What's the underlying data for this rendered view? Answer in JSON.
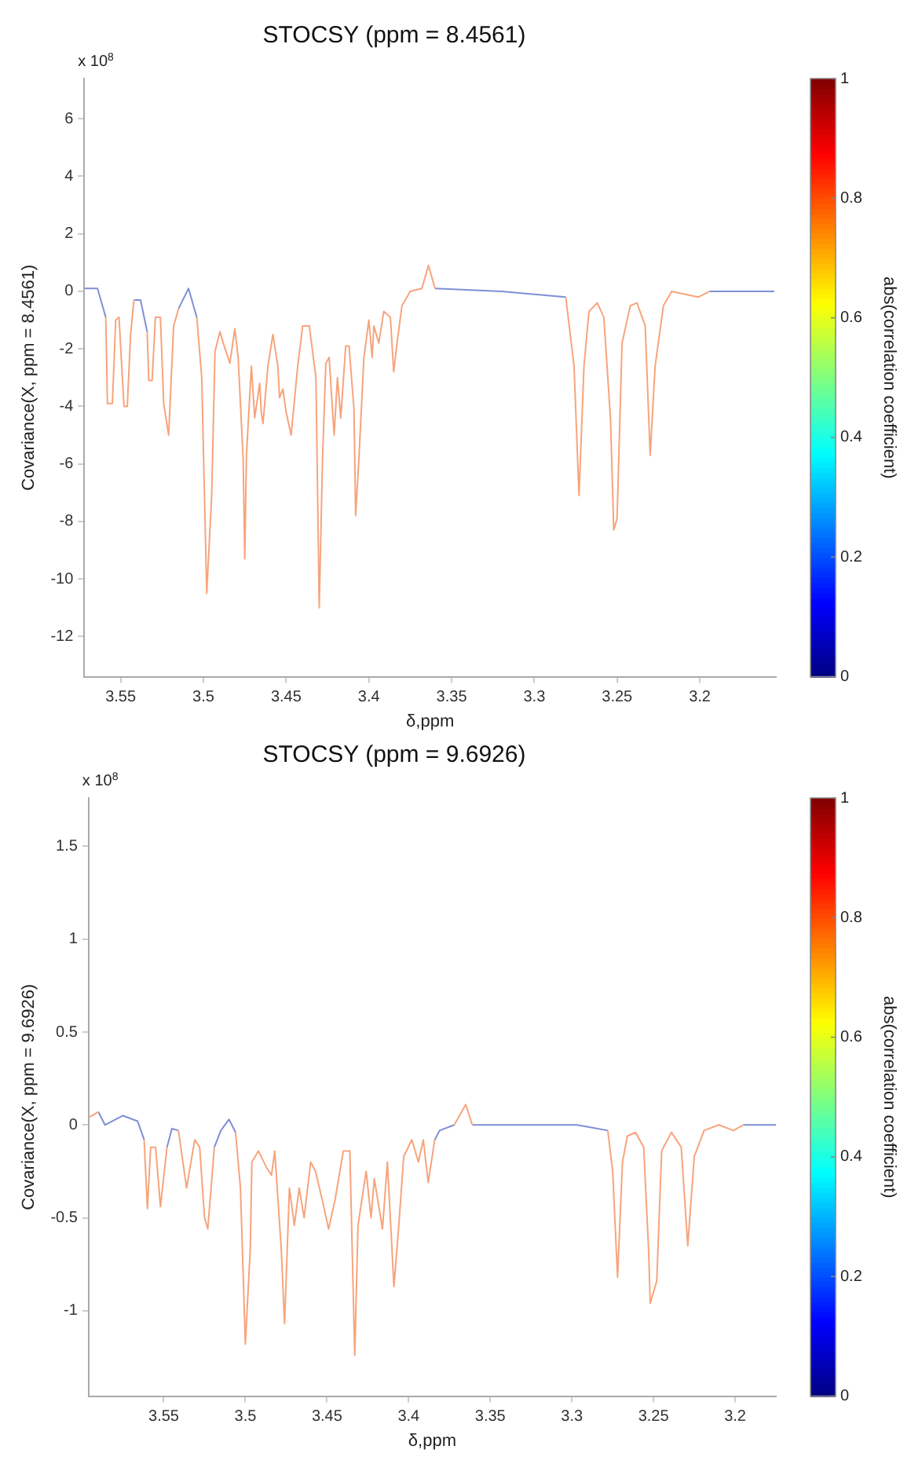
{
  "chart_data": [
    {
      "type": "line",
      "title": "STOCSY (ppm = 8.4561)",
      "xlabel": "δ,ppm",
      "ylabel": "Covariance(X, ppm = 8.4561)",
      "clabel": "abs(correlation coefficient)",
      "annotations": [
        "x 10$^{8}$"
      ],
      "xlim": [
        3.572,
        3.154
      ],
      "xticks": [
        3.55,
        3.5,
        3.45,
        3.4,
        3.35,
        3.3,
        3.25,
        3.2
      ],
      "ylim": [
        -13.4,
        7.4
      ],
      "yticks": [
        -12,
        -10,
        -8,
        -6,
        -4,
        -2,
        0,
        2,
        4,
        6
      ],
      "clim": [
        0,
        1
      ],
      "cticks": [
        0,
        0.2,
        0.4,
        0.6,
        0.8,
        1
      ],
      "grid": false,
      "legend": false,
      "marker": "none",
      "line_style": "solid",
      "x": [
        3.572,
        3.564,
        3.559,
        3.558,
        3.555,
        3.553,
        3.551,
        3.548,
        3.546,
        3.544,
        3.542,
        3.538,
        3.534,
        3.533,
        3.531,
        3.529,
        3.526,
        3.524,
        3.521,
        3.518,
        3.515,
        3.509,
        3.504,
        3.501,
        3.498,
        3.495,
        3.493,
        3.49,
        3.488,
        3.484,
        3.481,
        3.479,
        3.476,
        3.475,
        3.474,
        3.471,
        3.469,
        3.466,
        3.465,
        3.464,
        3.461,
        3.458,
        3.455,
        3.454,
        3.452,
        3.45,
        3.447,
        3.446,
        3.443,
        3.44,
        3.436,
        3.432,
        3.43,
        3.428,
        3.426,
        3.424,
        3.421,
        3.419,
        3.417,
        3.414,
        3.412,
        3.409,
        3.408,
        3.406,
        3.403,
        3.4,
        3.398,
        3.397,
        3.394,
        3.391,
        3.387,
        3.385,
        3.383,
        3.38,
        3.375,
        3.368,
        3.364,
        3.36,
        3.32,
        3.281,
        3.276,
        3.273,
        3.27,
        3.267,
        3.262,
        3.258,
        3.254,
        3.252,
        3.25,
        3.247,
        3.242,
        3.238,
        3.233,
        3.23,
        3.227,
        3.222,
        3.217,
        3.201,
        3.194,
        3.155
      ],
      "series": [
        {
          "color": "#f7a47c",
          "values": [
            null,
            null,
            -0.9,
            -3.9,
            -3.9,
            -1.0,
            -0.9,
            -4.0,
            -4.0,
            -1.5,
            -0.3,
            null,
            -1.4,
            -3.1,
            -3.1,
            -0.9,
            -0.9,
            -3.9,
            -5.0,
            -1.2,
            -0.6,
            null,
            -0.9,
            -3.0,
            -10.5,
            -7.1,
            -2.1,
            -1.4,
            -1.8,
            -2.5,
            -1.3,
            -2.3,
            -5.8,
            -9.3,
            -5.7,
            -2.6,
            -4.4,
            -3.2,
            -4.2,
            -4.6,
            -2.6,
            -1.5,
            -2.6,
            -3.7,
            -3.4,
            -4.2,
            -5.0,
            -4.4,
            -2.6,
            -1.2,
            -1.2,
            -3.0,
            -11.0,
            -5.8,
            -2.5,
            -2.3,
            -5.0,
            -3.0,
            -4.4,
            -1.9,
            -1.9,
            -4.1,
            -7.8,
            -5.8,
            -2.3,
            -1.0,
            -2.3,
            -1.2,
            -1.8,
            -0.7,
            -0.9,
            -2.8,
            -1.8,
            -0.5,
            0.0,
            0.1,
            0.9,
            0.1,
            null,
            -0.2,
            -2.6,
            -7.1,
            -2.6,
            -0.7,
            -0.4,
            -0.9,
            -4.4,
            -8.3,
            -7.9,
            -1.8,
            -0.5,
            -0.4,
            -1.2,
            -5.7,
            -2.6,
            -0.5,
            0.0,
            -0.2,
            0.0,
            null
          ]
        },
        {
          "color": "#7f8fd6",
          "values": [
            0.1,
            0.1,
            -0.9,
            null,
            null,
            null,
            null,
            null,
            null,
            null,
            -0.3,
            -0.3,
            -1.4,
            null,
            null,
            null,
            null,
            null,
            null,
            null,
            -0.6,
            0.1,
            -0.9,
            null,
            null,
            null,
            null,
            null,
            null,
            null,
            null,
            null,
            null,
            null,
            null,
            null,
            null,
            null,
            null,
            null,
            null,
            null,
            null,
            null,
            null,
            null,
            null,
            null,
            null,
            null,
            null,
            null,
            null,
            null,
            null,
            null,
            null,
            null,
            null,
            null,
            null,
            null,
            null,
            null,
            null,
            null,
            null,
            null,
            null,
            null,
            null,
            null,
            null,
            null,
            null,
            null,
            null,
            0.1,
            0.0,
            -0.2,
            null,
            null,
            null,
            null,
            null,
            null,
            null,
            null,
            null,
            null,
            null,
            null,
            null,
            null,
            null,
            null,
            null,
            null,
            0.0,
            0.0
          ]
        }
      ]
    },
    {
      "type": "line",
      "title": "STOCSY (ppm = 9.6926)",
      "xlabel": "δ,ppm",
      "ylabel": "Covariance(X, ppm = 9.6926)",
      "clabel": "abs(correlation coefficient)",
      "annotations": [
        "x 10$^{8}$"
      ],
      "xlim": [
        3.596,
        3.175
      ],
      "xticks": [
        3.55,
        3.5,
        3.45,
        3.4,
        3.35,
        3.3,
        3.25,
        3.2
      ],
      "ylim": [
        -1.46,
        1.76
      ],
      "yticks": [
        -1,
        -0.5,
        0,
        0.5,
        1,
        1.5
      ],
      "clim": [
        0,
        1
      ],
      "cticks": [
        0,
        0.2,
        0.4,
        0.6,
        0.8,
        1
      ],
      "grid": false,
      "legend": false,
      "marker": "none",
      "line_style": "solid",
      "x": [
        3.596,
        3.59,
        3.586,
        3.575,
        3.566,
        3.562,
        3.56,
        3.558,
        3.555,
        3.552,
        3.548,
        3.545,
        3.541,
        3.536,
        3.531,
        3.528,
        3.525,
        3.523,
        3.519,
        3.515,
        3.51,
        3.506,
        3.503,
        3.5,
        3.497,
        3.496,
        3.492,
        3.487,
        3.484,
        3.482,
        3.478,
        3.476,
        3.473,
        3.47,
        3.467,
        3.464,
        3.46,
        3.457,
        3.453,
        3.449,
        3.445,
        3.44,
        3.436,
        3.433,
        3.431,
        3.426,
        3.423,
        3.421,
        3.416,
        3.413,
        3.409,
        3.406,
        3.403,
        3.398,
        3.394,
        3.391,
        3.388,
        3.384,
        3.381,
        3.372,
        3.365,
        3.361,
        3.297,
        3.278,
        3.275,
        3.272,
        3.269,
        3.266,
        3.261,
        3.256,
        3.253,
        3.252,
        3.248,
        3.245,
        3.239,
        3.233,
        3.229,
        3.225,
        3.219,
        3.21,
        3.201,
        3.195,
        3.175
      ],
      "series": [
        {
          "color": "#f7a47c",
          "values": [
            0.04,
            0.07,
            null,
            null,
            null,
            -0.08,
            -0.45,
            -0.12,
            -0.12,
            -0.44,
            -0.12,
            null,
            -0.03,
            -0.34,
            -0.08,
            -0.12,
            -0.5,
            -0.56,
            -0.12,
            null,
            null,
            -0.04,
            -0.34,
            -1.18,
            -0.67,
            -0.2,
            -0.14,
            -0.23,
            -0.27,
            -0.14,
            -0.67,
            -1.07,
            -0.34,
            -0.54,
            -0.34,
            -0.5,
            -0.2,
            -0.25,
            -0.4,
            -0.56,
            -0.4,
            -0.14,
            -0.14,
            -1.24,
            -0.54,
            -0.25,
            -0.5,
            -0.29,
            -0.56,
            -0.2,
            -0.87,
            -0.54,
            -0.17,
            -0.08,
            -0.2,
            -0.08,
            -0.31,
            -0.08,
            null,
            0,
            0.11,
            0,
            null,
            -0.03,
            -0.25,
            -0.82,
            -0.2,
            -0.06,
            -0.04,
            -0.12,
            -0.67,
            -0.96,
            -0.84,
            -0.14,
            -0.04,
            -0.12,
            -0.65,
            -0.17,
            -0.03,
            0,
            -0.03,
            0,
            null
          ]
        },
        {
          "color": "#7f8fd6",
          "values": [
            null,
            0.07,
            0,
            0.05,
            0.02,
            -0.08,
            null,
            null,
            null,
            null,
            -0.12,
            -0.02,
            -0.03,
            null,
            null,
            null,
            null,
            null,
            -0.12,
            -0.03,
            0.03,
            -0.04,
            null,
            null,
            null,
            null,
            null,
            null,
            null,
            null,
            null,
            null,
            null,
            null,
            null,
            null,
            null,
            null,
            null,
            null,
            null,
            null,
            null,
            null,
            null,
            null,
            null,
            null,
            null,
            null,
            null,
            null,
            null,
            null,
            null,
            null,
            null,
            -0.08,
            -0.03,
            0,
            null,
            0,
            0,
            -0.03,
            null,
            null,
            null,
            null,
            null,
            null,
            null,
            null,
            null,
            null,
            null,
            null,
            null,
            null,
            null,
            null,
            null,
            0,
            0
          ]
        }
      ]
    }
  ]
}
